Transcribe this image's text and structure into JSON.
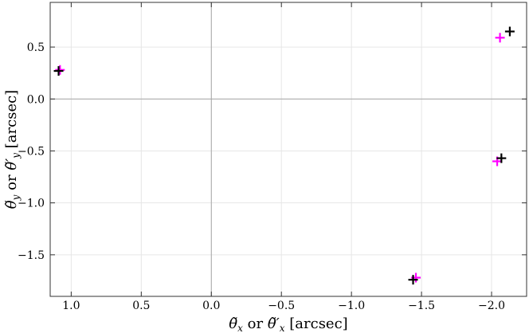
{
  "chart_data": {
    "type": "scatter",
    "xlabel_parts": {
      "sym": "θ̃",
      "sub": "x",
      "or": " or ",
      "sym2": "θ̃′",
      "sub2": "x",
      "unit": " [arcsec]"
    },
    "ylabel_parts": {
      "sym": "θ̃",
      "sub": "y",
      "or": " or ",
      "sym2": "θ̃′",
      "sub2": "y",
      "unit": " [arcsec]"
    },
    "xlim": [
      1.15,
      -2.25
    ],
    "ylim": [
      -1.9,
      0.93
    ],
    "x_reversed": true,
    "x_ticks": [
      1.0,
      0.5,
      0.0,
      -0.5,
      -1.0,
      -1.5,
      -2.0
    ],
    "x_tick_labels": [
      "1.0",
      "0.5",
      "0.0",
      "−0.5",
      "−1.0",
      "−1.5",
      "−2.0"
    ],
    "y_ticks": [
      0.5,
      0.0,
      -0.5,
      -1.0,
      -1.5
    ],
    "y_tick_labels": [
      "0.5",
      "0.0",
      "−0.5",
      "−1.0",
      "−1.5"
    ],
    "grid": true,
    "series": [
      {
        "color": "#ff00ff",
        "marker": "plus",
        "points": [
          {
            "x": 1.08,
            "y": 0.28
          },
          {
            "x": -1.46,
            "y": -1.72
          },
          {
            "x": -2.04,
            "y": -0.6
          },
          {
            "x": -2.06,
            "y": 0.59
          }
        ]
      },
      {
        "color": "#000000",
        "marker": "plus",
        "points": [
          {
            "x": 1.09,
            "y": 0.27
          },
          {
            "x": -1.44,
            "y": -1.74
          },
          {
            "x": -2.07,
            "y": -0.57
          },
          {
            "x": -2.13,
            "y": 0.65
          }
        ]
      }
    ]
  }
}
